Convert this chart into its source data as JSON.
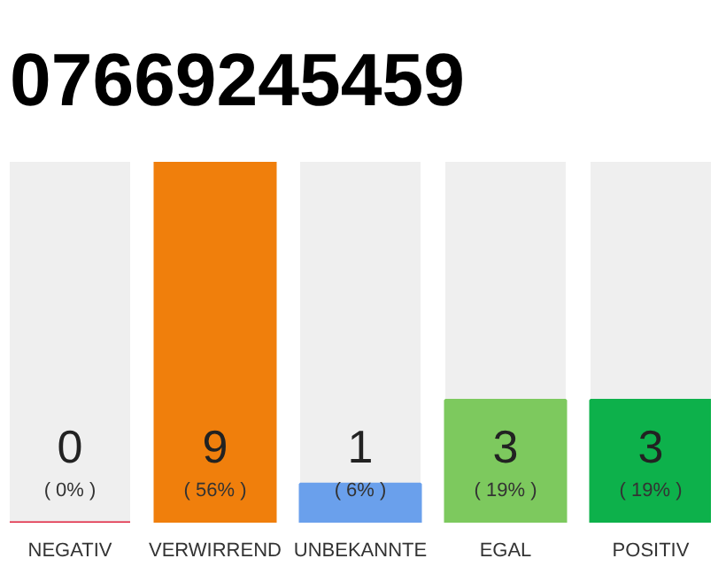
{
  "chart_data": {
    "type": "bar",
    "title": "07669245459",
    "categories": [
      "NEGATIV",
      "VERWIRREND",
      "UNBEKANNTE",
      "EGAL",
      "POSITIV"
    ],
    "values": [
      0,
      56,
      6,
      19,
      19
    ],
    "colors": [
      "#e0203c",
      "#f07f0c",
      "#6aa0ec",
      "#7dc95e",
      "#0db14b"
    ],
    "value_labels": [
      "( 0% )",
      "( 56% )",
      "( 6% )",
      "( 19% )",
      "( 19% )"
    ],
    "annotations": [
      "0",
      "9",
      "1",
      "3",
      "3"
    ]
  }
}
